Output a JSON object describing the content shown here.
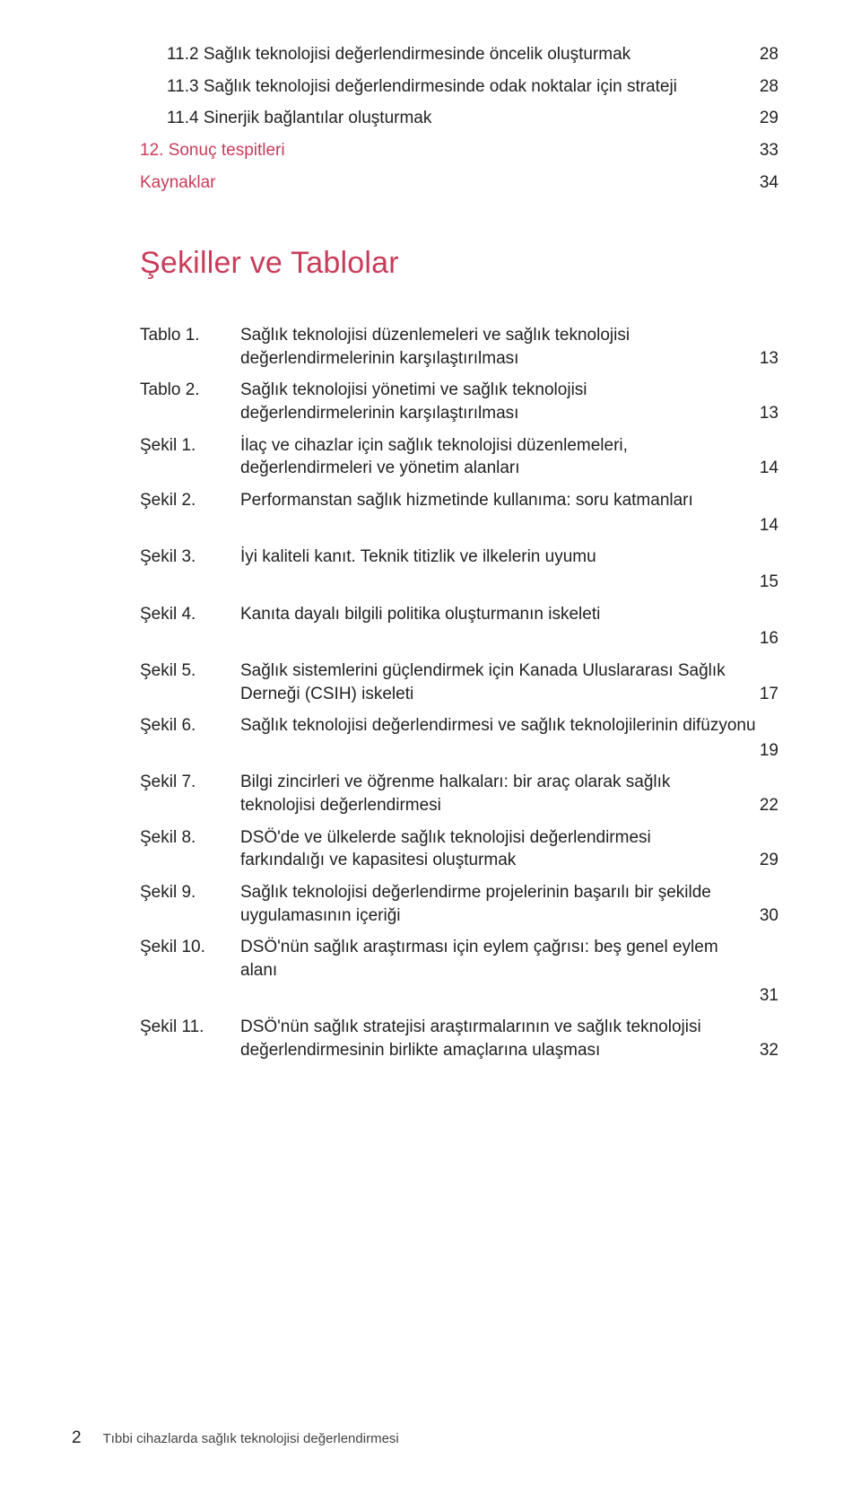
{
  "toc_top": [
    {
      "label": "11.2 Sağlık teknolojisi değerlendirmesinde öncelik oluşturmak",
      "page": "28",
      "indent": true,
      "red": false
    },
    {
      "label": "11.3 Sağlık teknolojisi değerlendirmesinde odak noktalar için strateji",
      "page": "28",
      "indent": true,
      "red": false
    },
    {
      "label": "11.4 Sinerjik bağlantılar oluşturmak",
      "page": "29",
      "indent": true,
      "red": false
    },
    {
      "label": "12. Sonuç tespitleri",
      "page": "33",
      "indent": false,
      "red": true
    },
    {
      "label": "Kaynaklar",
      "page": "34",
      "indent": false,
      "red": true
    }
  ],
  "section_title": "Şekiller ve Tablolar",
  "figures": [
    {
      "key": "Tablo 1.",
      "text": "Sağlık teknolojisi düzenlemeleri ve sağlık teknolojisi değerlendirmelerinin karşılaştırılması",
      "page": "13",
      "mode": "tall"
    },
    {
      "key": "Tablo 2.",
      "text": "Sağlık teknolojisi yönetimi ve sağlık teknolojisi değerlendirmelerinin karşılaştırılması",
      "page": "13",
      "mode": "tall"
    },
    {
      "key": "Şekil 1.",
      "text": "İlaç ve cihazlar için sağlık teknolojisi düzenlemeleri, değerlendirmeleri ve yönetim alanları",
      "page": "14",
      "mode": "tall"
    },
    {
      "key": "Şekil 2.",
      "text": "Performanstan sağlık hizmetinde kullanıma: soru katmanları",
      "page": "14",
      "mode": "below"
    },
    {
      "key": "Şekil 3.",
      "text": "İyi kaliteli kanıt. Teknik titizlik ve ilkelerin uyumu",
      "page": "15",
      "mode": "below"
    },
    {
      "key": "Şekil 4.",
      "text": "Kanıta dayalı bilgili politika oluşturmanın iskeleti",
      "page": "16",
      "mode": "below"
    },
    {
      "key": "Şekil 5.",
      "text": "Sağlık sistemlerini güçlendirmek için Kanada Uluslararası Sağlık Derneği (CSIH) iskeleti",
      "page": "17",
      "mode": "tall"
    },
    {
      "key": "Şekil 6.",
      "text": "Sağlık teknolojisi değerlendirmesi ve sağlık teknolojilerinin difüzyonu",
      "page": "19",
      "mode": "below"
    },
    {
      "key": "Şekil 7.",
      "text": "Bilgi zincirleri ve öğrenme halkaları: bir araç olarak sağlık teknolojisi değerlendirmesi",
      "page": "22",
      "mode": "tall"
    },
    {
      "key": "Şekil 8.",
      "text": "DSÖ'de ve ülkelerde sağlık teknolojisi değerlendirmesi farkındalığı ve kapasitesi oluşturmak",
      "page": "29",
      "mode": "tall"
    },
    {
      "key": "Şekil 9.",
      "text": "Sağlık teknolojisi değerlendirme projelerinin başarılı bir şekilde uygulamasının içeriği",
      "page": "30",
      "mode": "tall"
    },
    {
      "key": "Şekil 10.",
      "text": "DSÖ'nün sağlık araştırması için eylem çağrısı: beş genel eylem alanı",
      "page": "31",
      "mode": "below"
    },
    {
      "key": "Şekil 11.",
      "text": "DSÖ'nün sağlık stratejisi araştırmalarının ve sağlık teknolojisi değerlendirmesinin birlikte amaçlarına ulaşması",
      "page": "32",
      "mode": "tall"
    }
  ],
  "footer": {
    "page_number": "2",
    "text": "Tıbbi cihazlarda sağlık teknolojisi değerlendirmesi"
  }
}
